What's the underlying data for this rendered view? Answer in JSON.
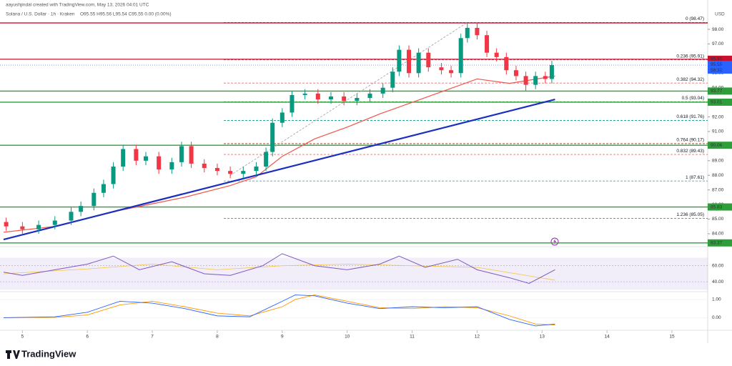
{
  "chart_data": {
    "type": "candlestick",
    "author_line": "aayushjindal created with TradingView.com, May 13, 2026 04:01 UTC",
    "symbol_line": "Solana / U.S. Dollar · 1h · Kraken",
    "ohlc_line": "O95.55 H95.56 L95.54 C95.55 0.00 (0.00%)",
    "currency": "USD",
    "brand": "TradingView",
    "xlim": [
      4.71,
      15.55
    ],
    "xticks": [
      5,
      6,
      7,
      8,
      9,
      10,
      11,
      12,
      13,
      14,
      15
    ],
    "ylim": [
      83.36,
      99.03
    ],
    "yticks": [
      {
        "value": 84,
        "label": "84.00"
      },
      {
        "value": 85,
        "label": "85.00"
      },
      {
        "value": 86,
        "label": "86.00"
      },
      {
        "value": 87,
        "label": "87.00"
      },
      {
        "value": 88,
        "label": "88.00"
      },
      {
        "value": 89,
        "label": "89.00"
      },
      {
        "value": 90,
        "label": "90.00"
      },
      {
        "value": 91,
        "label": "91.00"
      },
      {
        "value": 92,
        "label": "92.00"
      },
      {
        "value": 93,
        "label": "93.00"
      },
      {
        "value": 94,
        "label": "94.00"
      },
      {
        "value": 95,
        "label": "95.00"
      },
      {
        "value": 96,
        "label": "96.00"
      },
      {
        "value": 97,
        "label": "97.00"
      },
      {
        "value": 98,
        "label": "98.00"
      }
    ],
    "x": [
      4.75,
      5.0,
      5.25,
      5.5,
      5.75,
      5.9,
      6.1,
      6.25,
      6.4,
      6.55,
      6.75,
      6.9,
      7.1,
      7.3,
      7.45,
      7.6,
      7.8,
      8.0,
      8.2,
      8.4,
      8.6,
      8.75,
      8.85,
      9.0,
      9.15,
      9.35,
      9.55,
      9.75,
      9.95,
      10.15,
      10.35,
      10.55,
      10.7,
      10.8,
      10.95,
      11.1,
      11.25,
      11.45,
      11.6,
      11.75,
      11.85,
      12.0,
      12.15,
      12.3,
      12.45,
      12.6,
      12.75,
      12.9,
      13.05,
      13.15
    ],
    "open": [
      84.8,
      84.5,
      84.3,
      84.6,
      84.9,
      85.5,
      85.9,
      86.8,
      87.4,
      88.6,
      89.8,
      89.0,
      89.3,
      88.4,
      88.9,
      90.0,
      88.8,
      88.5,
      88.3,
      88.1,
      88.3,
      88.6,
      89.6,
      91.6,
      92.3,
      93.5,
      93.6,
      93.2,
      93.4,
      93.1,
      93.3,
      93.6,
      94.0,
      95.1,
      96.6,
      95.0,
      96.4,
      95.4,
      95.2,
      95.0,
      97.4,
      98.1,
      97.6,
      96.4,
      96.1,
      95.2,
      94.8,
      94.2,
      94.8,
      94.6
    ],
    "high": [
      85.1,
      84.8,
      84.9,
      85.2,
      85.8,
      86.2,
      87.1,
      87.7,
      88.9,
      90.1,
      90.1,
      89.6,
      89.6,
      89.2,
      90.3,
      90.3,
      89.1,
      88.8,
      88.6,
      88.6,
      88.9,
      89.9,
      91.9,
      92.6,
      93.8,
      93.9,
      93.9,
      93.7,
      93.7,
      93.6,
      93.9,
      94.3,
      95.4,
      96.9,
      96.9,
      96.7,
      96.7,
      95.7,
      95.5,
      97.7,
      98.47,
      98.4,
      97.9,
      96.7,
      96.4,
      95.5,
      95.1,
      95.1,
      95.1,
      95.85
    ],
    "low": [
      84.2,
      84.0,
      84.0,
      84.3,
      84.6,
      85.2,
      85.6,
      86.5,
      87.1,
      88.3,
      88.7,
      88.7,
      88.1,
      88.1,
      88.6,
      88.5,
      88.2,
      88.0,
      87.8,
      87.8,
      88.0,
      88.3,
      89.3,
      91.3,
      92.0,
      93.2,
      92.9,
      92.9,
      92.8,
      92.8,
      93.0,
      93.3,
      93.7,
      94.8,
      94.7,
      94.7,
      95.1,
      94.9,
      94.7,
      94.7,
      97.1,
      97.3,
      96.1,
      95.8,
      94.9,
      94.5,
      93.8,
      93.9,
      94.3,
      94.3
    ],
    "close": [
      84.5,
      84.3,
      84.6,
      84.9,
      85.5,
      85.9,
      86.8,
      87.4,
      88.6,
      89.8,
      89.0,
      89.3,
      88.4,
      88.9,
      90.0,
      88.8,
      88.5,
      88.3,
      88.1,
      88.3,
      88.6,
      89.6,
      91.6,
      92.3,
      93.5,
      93.6,
      93.2,
      93.4,
      93.1,
      93.3,
      93.6,
      94.0,
      95.1,
      96.6,
      95.0,
      96.4,
      95.4,
      95.2,
      95.0,
      97.4,
      98.1,
      97.6,
      96.4,
      96.1,
      95.2,
      94.8,
      94.2,
      94.8,
      94.6,
      95.55
    ],
    "up_color": "#089981",
    "down_color": "#f23645",
    "ema": {
      "color": "#f0564a",
      "x": [
        4.71,
        5.5,
        6.5,
        7.5,
        8.2,
        8.6,
        9.0,
        9.5,
        10.0,
        10.5,
        11.0,
        11.5,
        12.0,
        12.5,
        13.2
      ],
      "values": [
        84.1,
        84.5,
        85.6,
        86.5,
        87.3,
        87.9,
        89.3,
        90.5,
        91.3,
        92.2,
        93.0,
        93.8,
        94.6,
        94.3,
        94.8
      ]
    },
    "trendline": {
      "color": "#1a2fc0",
      "x": [
        4.71,
        13.2
      ],
      "values": [
        83.6,
        93.2
      ]
    },
    "fib_anchor": {
      "color": "#9aa0a8",
      "x": [
        8.2,
        11.85
      ],
      "values": [
        88.0,
        98.47
      ]
    },
    "levels": [
      {
        "value": 98.44,
        "color": "#c8102e"
      },
      {
        "value": 95.95,
        "color": "#c8102e",
        "label": "95.95"
      },
      {
        "value": 93.77,
        "color": "#2e9e3a",
        "label": "93.77"
      },
      {
        "value": 93.01,
        "color": "#2e9e3a",
        "label": "93.01"
      },
      {
        "value": 90.06,
        "color": "#2e9e3a",
        "label": "90.06"
      },
      {
        "value": 85.83,
        "color": "#2e9e3a",
        "label": "85.83"
      },
      {
        "value": 83.37,
        "color": "#2e9e3a",
        "label": "83.37"
      }
    ],
    "last_price": {
      "value": 95.55,
      "countdown": "58:32",
      "color": "#2962ff"
    },
    "fib_start": 8.1,
    "fib": [
      {
        "label": "0 (98.47)",
        "value": 98.47,
        "color": "#787b86"
      },
      {
        "label": "0.236 (95.91)",
        "value": 95.91,
        "color": "#f23645"
      },
      {
        "label": "0.382 (94.32)",
        "value": 94.32,
        "color": "#e0707a"
      },
      {
        "label": "0.5 (93.04)",
        "value": 93.04,
        "color": "#4caf50"
      },
      {
        "label": "0.618 (91.76)",
        "value": 91.76,
        "color": "#089981"
      },
      {
        "label": "0.764 (90.17)",
        "value": 90.17,
        "color": "#b71c1c"
      },
      {
        "label": "0.832 (89.43)",
        "value": 89.43,
        "color": "#e57373"
      },
      {
        "label": "1 (87.61)",
        "value": 87.61,
        "color": "#5b9cb0"
      },
      {
        "label": "1.236 (85.05)",
        "value": 85.05,
        "color": "#e91e63"
      }
    ],
    "rsi": {
      "ylim": [
        29.5,
        82
      ],
      "yticks": [
        {
          "value": 40,
          "label": "40.00"
        },
        {
          "value": 60,
          "label": "60.00"
        }
      ],
      "band": [
        30,
        70
      ],
      "color": "#7e57c2",
      "x": [
        4.71,
        5.0,
        5.5,
        6.0,
        6.4,
        6.8,
        7.3,
        7.8,
        8.2,
        8.7,
        9.0,
        9.5,
        10.0,
        10.5,
        10.8,
        11.2,
        11.7,
        12.0,
        12.5,
        12.8,
        13.2
      ],
      "values": [
        52,
        48,
        55,
        62,
        72,
        55,
        65,
        50,
        48,
        60,
        75,
        60,
        55,
        62,
        72,
        58,
        68,
        55,
        45,
        38,
        55
      ],
      "ma_color": "#f5c542",
      "ma_x": [
        4.71,
        6.0,
        7.0,
        8.0,
        9.0,
        10.0,
        11.0,
        12.0,
        13.2
      ],
      "ma_values": [
        50,
        56,
        62,
        55,
        60,
        62,
        60,
        58,
        42
      ]
    },
    "macd": {
      "ylim": [
        -0.65,
        1.35
      ],
      "yticks": [
        {
          "value": 0,
          "label": "0.00"
        },
        {
          "value": 1,
          "label": "1.00"
        }
      ],
      "x": [
        4.71,
        5.5,
        6.0,
        6.5,
        7.0,
        7.5,
        8.0,
        8.5,
        9.0,
        9.2,
        9.5,
        10.0,
        10.5,
        11.0,
        11.5,
        12.0,
        12.5,
        12.9,
        13.2
      ],
      "color": "#2962ff",
      "values": [
        0,
        0.05,
        0.3,
        0.9,
        0.8,
        0.5,
        0.1,
        0.05,
        0.9,
        1.25,
        1.2,
        0.8,
        0.5,
        0.6,
        0.55,
        0.6,
        -0.1,
        -0.45,
        -0.35
      ],
      "signal_color": "#ff9800",
      "signal": [
        0,
        0.02,
        0.15,
        0.7,
        0.9,
        0.6,
        0.25,
        0.1,
        0.6,
        1.0,
        1.25,
        0.9,
        0.55,
        0.5,
        0.6,
        0.55,
        0.1,
        -0.35,
        -0.4
      ]
    }
  }
}
